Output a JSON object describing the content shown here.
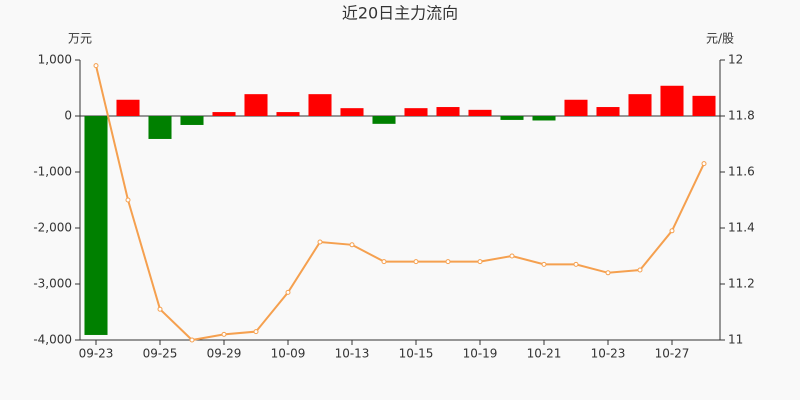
{
  "chart_data": {
    "type": "bar-line",
    "title": "近20日主力流向",
    "y_unit": "万元",
    "y2_unit": "元/股",
    "categories": [
      "09-23",
      null,
      "09-25",
      null,
      "09-29",
      null,
      "10-09",
      null,
      "10-13",
      null,
      "10-15",
      null,
      "10-19",
      null,
      "10-21",
      null,
      "10-23",
      null,
      "10-27",
      null
    ],
    "positive_color": "#ff0000",
    "negative_color": "#008000",
    "series": [
      {
        "type": "bar",
        "values": [
          -3910,
          290,
          -410,
          -160,
          70,
          390,
          70,
          390,
          140,
          -140,
          140,
          160,
          110,
          -70,
          -80,
          290,
          160,
          390,
          540,
          360
        ]
      },
      {
        "type": "line",
        "axis": "y2",
        "color": "#f5a04f",
        "values": [
          11.98,
          11.5,
          11.11,
          11.0,
          11.02,
          11.03,
          11.17,
          11.35,
          11.34,
          11.28,
          11.28,
          11.28,
          11.28,
          11.3,
          11.27,
          11.27,
          11.24,
          11.25,
          11.39,
          11.63
        ]
      }
    ],
    "ylim": [
      -4000,
      1000
    ],
    "yticks": [
      {
        "value": -4000,
        "label": "-4,000"
      },
      {
        "value": -3000,
        "label": "-3,000"
      },
      {
        "value": -2000,
        "label": "-2,000"
      },
      {
        "value": -1000,
        "label": "-1,000"
      },
      0,
      {
        "value": 1000,
        "label": "1,000"
      }
    ],
    "y2lim": [
      11,
      12
    ],
    "y2ticks": [
      11,
      11.2,
      11.4,
      11.6,
      11.8,
      12
    ]
  }
}
